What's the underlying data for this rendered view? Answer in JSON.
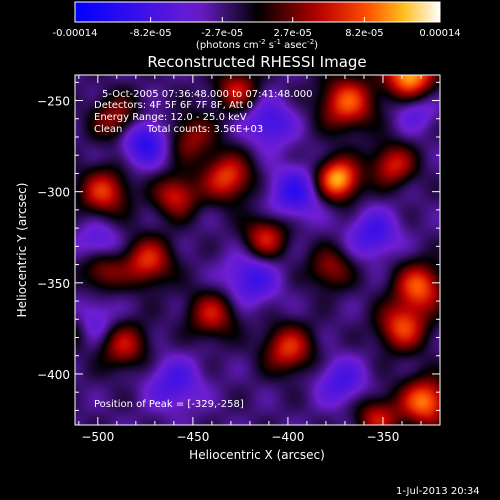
{
  "chart_data": {
    "type": "heatmap",
    "title": "Reconstructed RHESSI Image",
    "xlabel": "Heliocentric X (arcsec)",
    "ylabel": "Heliocentric Y (arcsec)",
    "xlim": [
      -512,
      -320
    ],
    "ylim": [
      -428,
      -236
    ],
    "xticks": [
      -500,
      -450,
      -400,
      -350
    ],
    "yticks": [
      -250,
      -300,
      -350,
      -400
    ],
    "colorbar": {
      "vmin": -0.00014,
      "vmax": 0.00014,
      "ticks": [
        "-0.00014",
        "-8.2e-05",
        "-2.7e-05",
        "2.7e-05",
        "8.2e-05",
        "0.00014"
      ],
      "units_main": "(photons cm",
      "units_sup1": "-2",
      "units_mid": " s",
      "units_sup2": "-1",
      "units_end": " asec",
      "units_sup3": "-2",
      "units_close": ")"
    },
    "colormap": "red-temperature with blue negatives",
    "info": {
      "line1": "5-Oct-2005 07:36:48.000 to 07:41:48.000",
      "line2": "Detectors: 4F 5F 6F 7F 8F, Att 0",
      "line3": "Energy Range: 12.0 - 25.0 keV",
      "line4_a": "Clean",
      "line4_b": "Total counts: 3.56E+03"
    },
    "peak_label": "Position of Peak = [-329,-258]",
    "peak": [
      -329,
      -258
    ],
    "sources": [
      {
        "x": -336,
        "y": -236,
        "amp": 1.0,
        "s": 9
      },
      {
        "x": -369,
        "y": -251,
        "amp": 0.75,
        "s": 10
      },
      {
        "x": -490,
        "y": -260,
        "amp": 0.5,
        "s": 9
      },
      {
        "x": -451,
        "y": -270,
        "amp": 0.45,
        "s": 9
      },
      {
        "x": -427,
        "y": -244,
        "amp": 0.55,
        "s": 8
      },
      {
        "x": -374,
        "y": -293,
        "amp": 1.0,
        "s": 8
      },
      {
        "x": -345,
        "y": -285,
        "amp": 0.6,
        "s": 8
      },
      {
        "x": -432,
        "y": -292,
        "amp": 0.7,
        "s": 9
      },
      {
        "x": -459,
        "y": -302,
        "amp": 0.6,
        "s": 8
      },
      {
        "x": -497,
        "y": -300,
        "amp": 0.65,
        "s": 9
      },
      {
        "x": -412,
        "y": -325,
        "amp": 0.6,
        "s": 8
      },
      {
        "x": -498,
        "y": -343,
        "amp": 0.45,
        "s": 8
      },
      {
        "x": -474,
        "y": -338,
        "amp": 0.65,
        "s": 9
      },
      {
        "x": -440,
        "y": -367,
        "amp": 0.55,
        "s": 9
      },
      {
        "x": -378,
        "y": -342,
        "amp": 0.45,
        "s": 8
      },
      {
        "x": -331,
        "y": -352,
        "amp": 0.75,
        "s": 9
      },
      {
        "x": -340,
        "y": -374,
        "amp": 0.7,
        "s": 9
      },
      {
        "x": -400,
        "y": -386,
        "amp": 0.65,
        "s": 9
      },
      {
        "x": -487,
        "y": -384,
        "amp": 0.55,
        "s": 9
      },
      {
        "x": -328,
        "y": -415,
        "amp": 0.85,
        "s": 9
      },
      {
        "x": -353,
        "y": -424,
        "amp": 0.55,
        "s": 8
      },
      {
        "x": -512,
        "y": -375,
        "amp": 0.4,
        "s": 8
      },
      {
        "x": -476,
        "y": -272,
        "amp": -0.6,
        "s": 9
      },
      {
        "x": -410,
        "y": -262,
        "amp": -0.45,
        "s": 9
      },
      {
        "x": -396,
        "y": -300,
        "amp": -0.5,
        "s": 10
      },
      {
        "x": -355,
        "y": -323,
        "amp": -0.45,
        "s": 9
      },
      {
        "x": -420,
        "y": -348,
        "amp": -0.45,
        "s": 10
      },
      {
        "x": -504,
        "y": -372,
        "amp": -0.45,
        "s": 9
      },
      {
        "x": -460,
        "y": -405,
        "amp": -0.4,
        "s": 10
      },
      {
        "x": -372,
        "y": -404,
        "amp": -0.4,
        "s": 9
      },
      {
        "x": -333,
        "y": -255,
        "amp": -0.3,
        "s": 8
      },
      {
        "x": -500,
        "y": -328,
        "amp": -0.35,
        "s": 8
      }
    ]
  },
  "footer": {
    "date": "1-Jul-2013 20:34"
  }
}
